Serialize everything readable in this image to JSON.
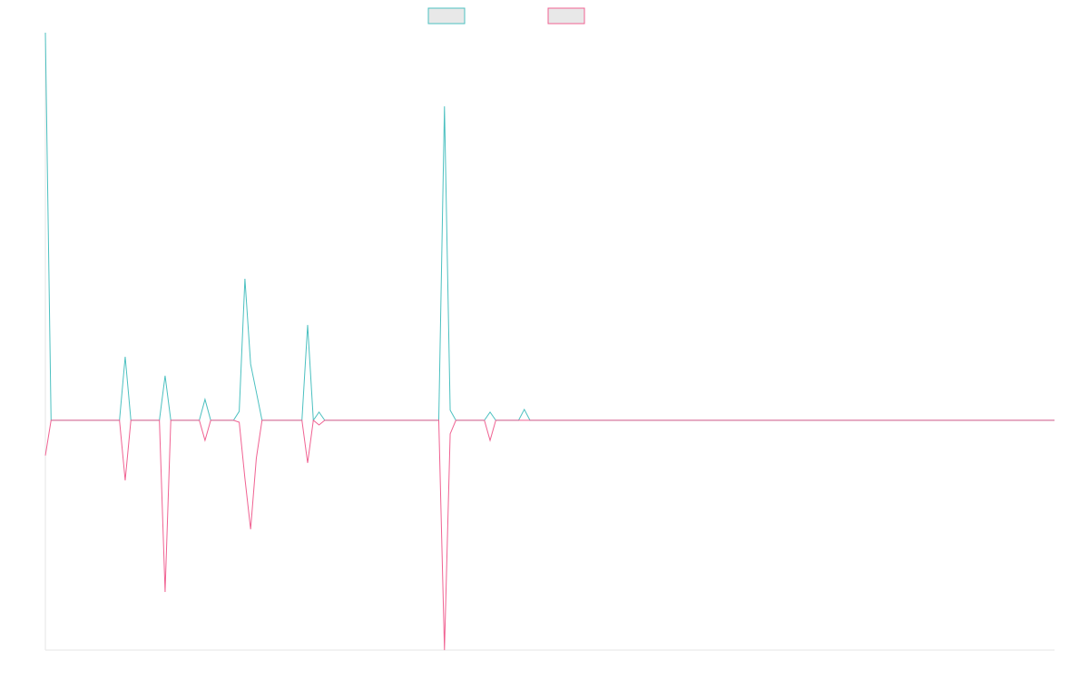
{
  "chart_data": {
    "type": "line",
    "x": [
      0,
      1,
      13,
      14,
      15,
      20,
      21,
      22,
      27,
      28,
      29,
      33,
      34,
      35,
      36,
      37,
      38,
      45,
      46,
      47,
      48,
      49,
      69,
      70,
      71,
      72,
      77,
      78,
      79,
      83,
      84,
      85,
      177
    ],
    "series": [
      {
        "color": "#4bc0c0",
        "values": [
          100,
          0,
          0,
          16.4,
          0,
          0,
          11.5,
          0,
          0,
          5.4,
          0,
          0,
          2.3,
          36.5,
          14.5,
          7.3,
          0,
          0,
          24.6,
          0,
          2.1,
          0,
          0,
          81,
          2.6,
          0,
          0,
          2.1,
          0,
          0,
          2.8,
          0,
          0
        ]
      },
      {
        "color": "#f06292",
        "values": [
          -9.1,
          0,
          0,
          -15.5,
          0,
          0,
          -44.3,
          0,
          0,
          -5.2,
          0,
          0,
          -0.5,
          -15,
          -28.1,
          -9.8,
          0,
          0,
          -11,
          0,
          -1.2,
          0,
          0,
          -59.3,
          -3.5,
          0,
          0,
          -5.2,
          0,
          0,
          0,
          0,
          0
        ]
      }
    ],
    "xlim": [
      0,
      177
    ],
    "ylim": [
      -59.3,
      100
    ]
  }
}
